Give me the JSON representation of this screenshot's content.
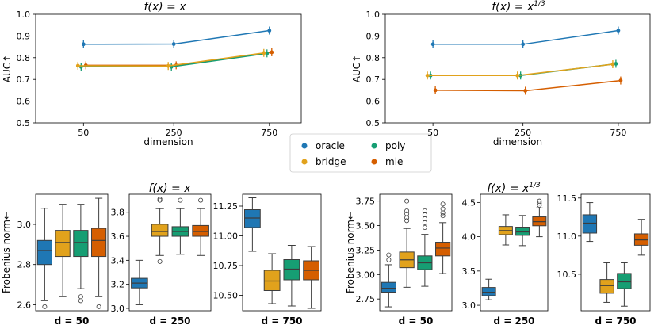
{
  "colors": {
    "oracle": "#1f77b4",
    "bridge": "#e1a21c",
    "poly": "#169e73",
    "mle": "#d55e00"
  },
  "legend": [
    {
      "key": "oracle",
      "label": "oracle"
    },
    {
      "key": "poly",
      "label": "poly"
    },
    {
      "key": "bridge",
      "label": "bridge"
    },
    {
      "key": "mle",
      "label": "mle"
    }
  ],
  "chart_data": [
    {
      "id": "auc_linear",
      "type": "line",
      "title_base": "f(x) = x",
      "title_sup": "",
      "xlabel": "dimension",
      "ylabel": "AUC↑",
      "x": [
        50,
        250,
        750
      ],
      "xticks": [
        "50",
        "250",
        "750"
      ],
      "ylim": [
        0.5,
        1.0
      ],
      "yticks": [
        "0.5",
        "0.6",
        "0.7",
        "0.8",
        "0.9",
        "1.0"
      ],
      "series": [
        {
          "name": "oracle",
          "values": [
            0.862,
            0.863,
            0.925
          ]
        },
        {
          "name": "bridge",
          "values": [
            0.763,
            0.762,
            0.822
          ]
        },
        {
          "name": "poly",
          "values": [
            0.758,
            0.758,
            0.82
          ]
        },
        {
          "name": "mle",
          "values": [
            0.765,
            0.765,
            0.825
          ]
        }
      ]
    },
    {
      "id": "auc_cuberoot",
      "type": "line",
      "title_base": "f(x) = x",
      "title_sup": "1/3",
      "xlabel": "dimension",
      "ylabel": "AUC↑",
      "x": [
        50,
        250,
        750
      ],
      "xticks": [
        "50",
        "250",
        "750"
      ],
      "ylim": [
        0.5,
        1.0
      ],
      "yticks": [
        "0.5",
        "0.6",
        "0.7",
        "0.8",
        "0.9",
        "1.0"
      ],
      "series": [
        {
          "name": "oracle",
          "values": [
            0.862,
            0.862,
            0.925
          ]
        },
        {
          "name": "bridge",
          "values": [
            0.718,
            0.718,
            0.77
          ]
        },
        {
          "name": "poly",
          "values": [
            0.718,
            0.718,
            0.772
          ]
        },
        {
          "name": "mle",
          "values": [
            0.65,
            0.648,
            0.695
          ]
        }
      ]
    },
    {
      "id": "frob_linear_d50",
      "type": "box",
      "xlabel": "d = 50",
      "ylabel": "Frobenius norm←",
      "ylim": [
        2.57,
        3.15
      ],
      "yticks": [
        2.6,
        2.8,
        3.0
      ],
      "ytick_labels": [
        "2.6",
        "2.8",
        "3.0"
      ],
      "boxes": [
        {
          "name": "oracle",
          "whislo": 2.62,
          "q1": 2.8,
          "med": 2.87,
          "q3": 2.92,
          "whishi": 3.08,
          "fliers": [
            2.59
          ]
        },
        {
          "name": "bridge",
          "whislo": 2.64,
          "q1": 2.84,
          "med": 2.91,
          "q3": 2.97,
          "whishi": 3.1,
          "fliers": []
        },
        {
          "name": "poly",
          "whislo": 2.68,
          "q1": 2.84,
          "med": 2.91,
          "q3": 2.97,
          "whishi": 3.1,
          "fliers": [
            2.62,
            2.64
          ]
        },
        {
          "name": "mle",
          "whislo": 2.64,
          "q1": 2.84,
          "med": 2.92,
          "q3": 2.98,
          "whishi": 3.13,
          "fliers": [
            2.59
          ]
        }
      ]
    },
    {
      "id": "frob_linear_d250",
      "type": "box",
      "xlabel": "d = 250",
      "title_base": "f(x) = x",
      "title_sup": "",
      "ylim": [
        2.98,
        3.95
      ],
      "yticks": [
        3.0,
        3.2,
        3.4,
        3.6,
        3.8
      ],
      "ytick_labels": [
        "3.0",
        "3.2",
        "3.4",
        "3.6",
        "3.8"
      ],
      "boxes": [
        {
          "name": "oracle",
          "whislo": 3.03,
          "q1": 3.17,
          "med": 3.21,
          "q3": 3.25,
          "whishi": 3.4,
          "fliers": []
        },
        {
          "name": "bridge",
          "whislo": 3.44,
          "q1": 3.6,
          "med": 3.64,
          "q3": 3.7,
          "whishi": 3.83,
          "fliers": [
            3.39,
            3.9,
            3.91
          ]
        },
        {
          "name": "poly",
          "whislo": 3.45,
          "q1": 3.6,
          "med": 3.64,
          "q3": 3.68,
          "whishi": 3.83,
          "fliers": [
            3.9
          ]
        },
        {
          "name": "mle",
          "whislo": 3.44,
          "q1": 3.6,
          "med": 3.64,
          "q3": 3.69,
          "whishi": 3.83,
          "fliers": [
            3.9
          ]
        }
      ]
    },
    {
      "id": "frob_linear_d750",
      "type": "box",
      "xlabel": "d = 750",
      "ylim": [
        10.37,
        11.35
      ],
      "yticks": [
        10.5,
        10.75,
        11.0,
        11.25
      ],
      "ytick_labels": [
        "10.50",
        "10.75",
        "11.00",
        "11.25"
      ],
      "boxes": [
        {
          "name": "oracle",
          "whislo": 10.87,
          "q1": 11.07,
          "med": 11.15,
          "q3": 11.22,
          "whishi": 11.32,
          "fliers": []
        },
        {
          "name": "bridge",
          "whislo": 10.43,
          "q1": 10.54,
          "med": 10.62,
          "q3": 10.71,
          "whishi": 10.85,
          "fliers": []
        },
        {
          "name": "poly",
          "whislo": 10.41,
          "q1": 10.63,
          "med": 10.72,
          "q3": 10.8,
          "whishi": 10.92,
          "fliers": []
        },
        {
          "name": "mle",
          "whislo": 10.39,
          "q1": 10.63,
          "med": 10.71,
          "q3": 10.79,
          "whishi": 10.91,
          "fliers": []
        }
      ]
    },
    {
      "id": "frob_cuberoot_d50",
      "type": "box",
      "xlabel": "d = 50",
      "ylabel": "Frobenius norm←",
      "ylim": [
        2.63,
        3.82
      ],
      "yticks": [
        2.75,
        3.0,
        3.25,
        3.5,
        3.75
      ],
      "ytick_labels": [
        "2.75",
        "3.00",
        "3.25",
        "3.50",
        "3.75"
      ],
      "boxes": [
        {
          "name": "oracle",
          "whislo": 2.67,
          "q1": 2.82,
          "med": 2.86,
          "q3": 2.92,
          "whishi": 3.1,
          "fliers": [
            3.15,
            3.2
          ]
        },
        {
          "name": "bridge",
          "whislo": 2.87,
          "q1": 3.07,
          "med": 3.15,
          "q3": 3.23,
          "whishi": 3.47,
          "fliers": [
            3.55,
            3.58,
            3.62,
            3.65,
            3.75
          ]
        },
        {
          "name": "poly",
          "whislo": 2.88,
          "q1": 3.05,
          "med": 3.12,
          "q3": 3.19,
          "whishi": 3.41,
          "fliers": [
            3.48,
            3.53,
            3.57,
            3.61,
            3.65
          ]
        },
        {
          "name": "mle",
          "whislo": 3.01,
          "q1": 3.19,
          "med": 3.27,
          "q3": 3.33,
          "whishi": 3.53,
          "fliers": [
            3.6,
            3.63,
            3.67,
            3.72
          ]
        }
      ]
    },
    {
      "id": "frob_cuberoot_d250",
      "type": "box",
      "xlabel": "d = 250",
      "title_base": "f(x) = x",
      "title_sup": "1/3",
      "ylim": [
        2.92,
        4.62
      ],
      "yticks": [
        3.0,
        3.5,
        4.0,
        4.5
      ],
      "ytick_labels": [
        "3.0",
        "3.5",
        "4.0",
        "4.5"
      ],
      "boxes": [
        {
          "name": "oracle",
          "whislo": 3.08,
          "q1": 3.14,
          "med": 3.19,
          "q3": 3.26,
          "whishi": 3.38,
          "fliers": []
        },
        {
          "name": "bridge",
          "whislo": 3.88,
          "q1": 4.03,
          "med": 4.09,
          "q3": 4.15,
          "whishi": 4.32,
          "fliers": []
        },
        {
          "name": "poly",
          "whislo": 3.87,
          "q1": 4.02,
          "med": 4.07,
          "q3": 4.14,
          "whishi": 4.31,
          "fliers": []
        },
        {
          "name": "mle",
          "whislo": 4.0,
          "q1": 4.16,
          "med": 4.22,
          "q3": 4.29,
          "whishi": 4.42,
          "fliers": [
            4.46,
            4.49,
            4.52
          ]
        }
      ]
    },
    {
      "id": "frob_cuberoot_d750",
      "type": "box",
      "xlabel": "d = 750",
      "ylim": [
        10.02,
        11.55
      ],
      "yticks": [
        10.5,
        11.0,
        11.5
      ],
      "ytick_labels": [
        "10.5",
        "11.0",
        "11.5"
      ],
      "boxes": [
        {
          "name": "oracle",
          "whislo": 10.93,
          "q1": 11.04,
          "med": 11.17,
          "q3": 11.28,
          "whishi": 11.44,
          "fliers": []
        },
        {
          "name": "bridge",
          "whislo": 10.13,
          "q1": 10.25,
          "med": 10.35,
          "q3": 10.43,
          "whishi": 10.65,
          "fliers": []
        },
        {
          "name": "poly",
          "whislo": 10.08,
          "q1": 10.31,
          "med": 10.4,
          "q3": 10.51,
          "whishi": 10.65,
          "fliers": []
        },
        {
          "name": "mle",
          "whislo": 10.75,
          "q1": 10.88,
          "med": 10.95,
          "q3": 11.03,
          "whishi": 11.22,
          "fliers": []
        }
      ]
    }
  ]
}
